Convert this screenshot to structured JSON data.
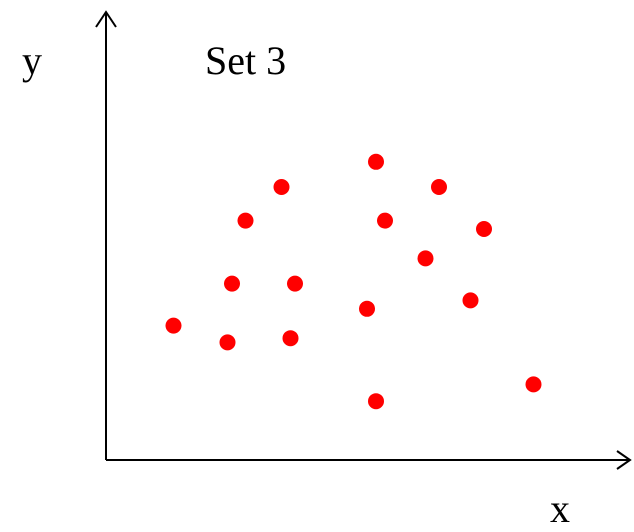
{
  "chart_data": {
    "type": "scatter",
    "title": "Set 3",
    "xlabel": "x",
    "ylabel": "y",
    "xlim": [
      0,
      10
    ],
    "ylim": [
      0,
      10
    ],
    "grid": false,
    "legend": "none",
    "colors": {
      "points": "#ff0000",
      "axes": "#000000"
    },
    "points": [
      {
        "x": 6.0,
        "y": 7.1
      },
      {
        "x": 3.9,
        "y": 6.5
      },
      {
        "x": 7.4,
        "y": 6.5
      },
      {
        "x": 3.1,
        "y": 5.7
      },
      {
        "x": 6.2,
        "y": 5.7
      },
      {
        "x": 8.4,
        "y": 5.5
      },
      {
        "x": 7.1,
        "y": 4.8
      },
      {
        "x": 2.8,
        "y": 4.2
      },
      {
        "x": 4.2,
        "y": 4.2
      },
      {
        "x": 8.1,
        "y": 3.8
      },
      {
        "x": 5.8,
        "y": 3.6
      },
      {
        "x": 1.5,
        "y": 3.2
      },
      {
        "x": 4.1,
        "y": 2.9
      },
      {
        "x": 2.7,
        "y": 2.8
      },
      {
        "x": 9.5,
        "y": 1.8
      },
      {
        "x": 6.0,
        "y": 1.4
      }
    ]
  }
}
